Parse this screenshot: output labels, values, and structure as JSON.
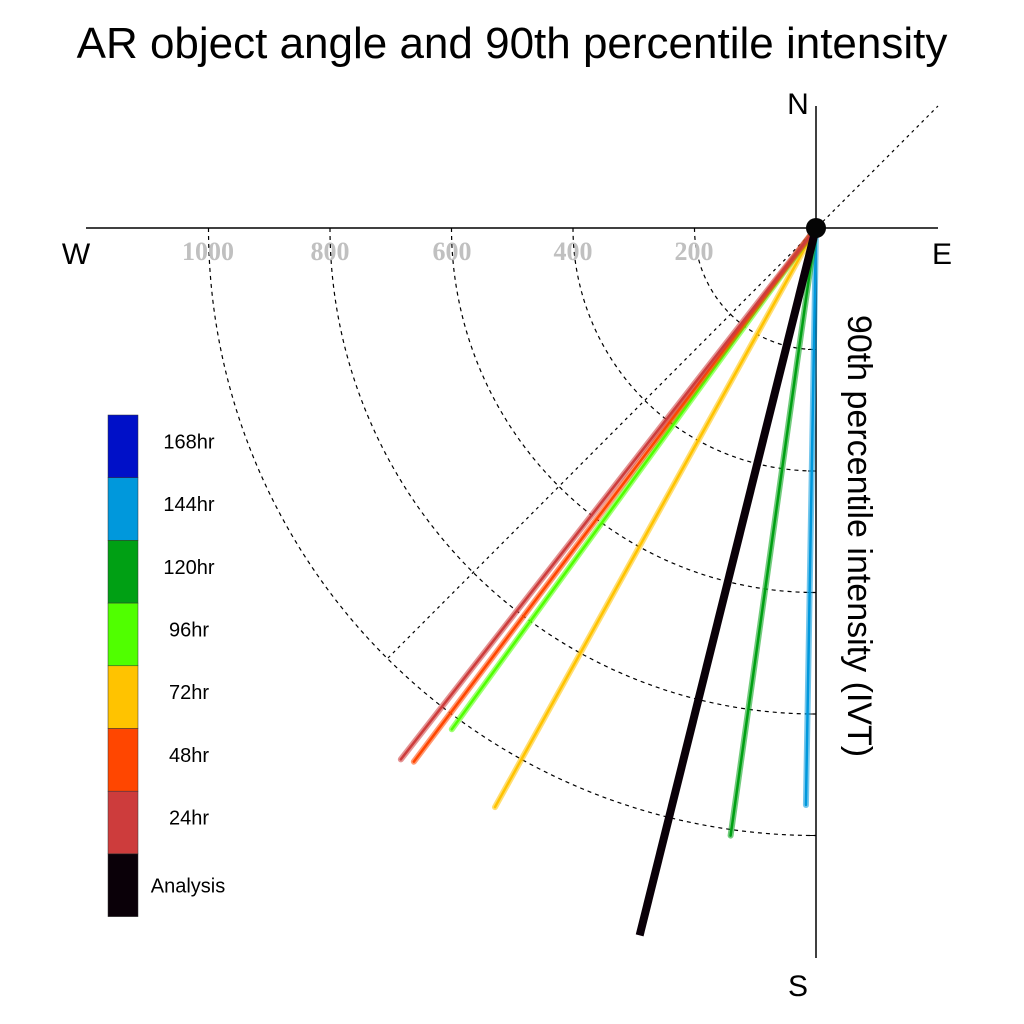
{
  "chart_data": {
    "type": "polar-ray",
    "title": "AR object angle and 90th percentile intensity",
    "ylabel": "90th percentile intensity (IVT)",
    "compass": {
      "north": "N",
      "south": "S",
      "east": "E",
      "west": "W"
    },
    "radial_ticks": [
      "1000",
      "800",
      "600",
      "400",
      "200"
    ],
    "radial_tick_values": [
      1000,
      800,
      600,
      400,
      200
    ],
    "radial_max": 1200,
    "colors": {
      "168hr": "#0010c8",
      "144hr": "#0098dc",
      "120hr": "#00a014",
      "96hr": "#50ff00",
      "72hr": "#ffc300",
      "48hr": "#ff4600",
      "24hr": "#cd3c3c",
      "Analysis": "#0a0008"
    },
    "legend": [
      "168hr",
      "144hr",
      "120hr",
      "96hr",
      "72hr",
      "48hr",
      "24hr",
      "Analysis"
    ],
    "series": [
      {
        "name": "144hr",
        "angle_deg": 181,
        "intensity": 950
      },
      {
        "name": "120hr",
        "angle_deg": 188,
        "intensity": 1010
      },
      {
        "name": "72hr",
        "angle_deg": 209,
        "intensity": 1090
      },
      {
        "name": "96hr",
        "angle_deg": 216,
        "intensity": 1020
      },
      {
        "name": "48hr",
        "angle_deg": 217,
        "intensity": 1100
      },
      {
        "name": "24hr",
        "angle_deg": 218,
        "intensity": 1110
      },
      {
        "name": "Analysis",
        "angle_deg": 194,
        "intensity": 1200
      }
    ]
  }
}
